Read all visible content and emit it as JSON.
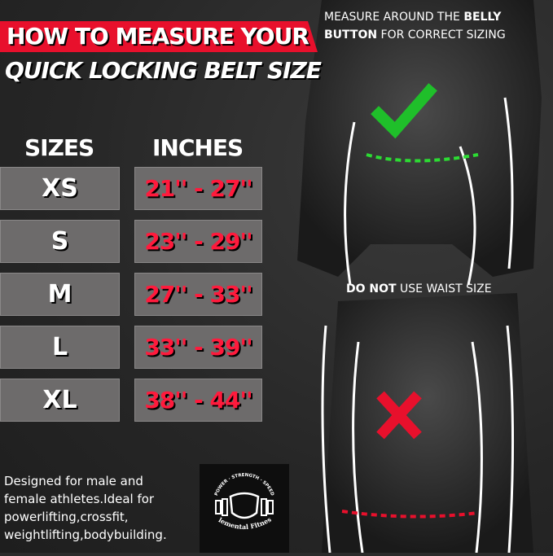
{
  "title": {
    "line1": "HOW TO MEASURE YOUR",
    "line2": "QUICK LOCKING BELT SIZE"
  },
  "table": {
    "headers": {
      "sizes": "SIZES",
      "inches": "INCHES"
    },
    "rows": [
      {
        "size": "XS",
        "inches": "21'' - 27''"
      },
      {
        "size": "S",
        "inches": "23'' - 29''"
      },
      {
        "size": "M",
        "inches": "27'' - 33''"
      },
      {
        "size": "L",
        "inches": "33'' - 39''"
      },
      {
        "size": "XL",
        "inches": "38'' - 44''"
      }
    ]
  },
  "correct": {
    "text_pre": "MEASURE AROUND THE ",
    "text_bold": "BELLY BUTTON",
    "text_post": " FOR CORRECT SIZING",
    "icon": "check-icon",
    "color": "#1fbf2a"
  },
  "incorrect": {
    "text_bold": "DO NOT",
    "text_post": " USE WAIST SIZE",
    "icon": "x-icon",
    "color": "#e8102c"
  },
  "description": "Designed for male and female athletes.Ideal for powerlifting,crossfit, weightlifting,bodybuilding.",
  "logo": {
    "name": "Elemental Fitness",
    "tagline": "POWER · STRENGTH · SPEED"
  },
  "colors": {
    "accent": "#e8102c",
    "cell": "#6d6b6b"
  }
}
